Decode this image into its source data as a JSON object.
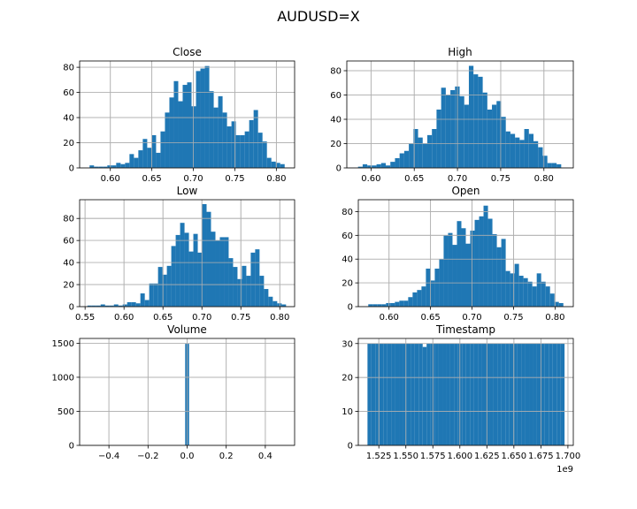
{
  "chart_data": {
    "title": "AUDUSD=X",
    "type": "histogram-grid",
    "bar_color": "#1f77b4",
    "grid": true,
    "panels": [
      {
        "id": "close",
        "title": "Close",
        "type": "bar",
        "bin_start": 0.575,
        "bin_end": 0.81,
        "values": [
          2,
          1,
          1,
          1,
          2,
          2,
          4,
          3,
          4,
          11,
          8,
          14,
          23,
          16,
          26,
          12,
          29,
          44,
          56,
          69,
          53,
          66,
          68,
          49,
          77,
          79,
          81,
          61,
          48,
          57,
          44,
          33,
          37,
          26,
          26,
          29,
          38,
          46,
          28,
          21,
          8,
          5,
          4,
          3
        ],
        "xlim": [
          0.563,
          0.822
        ],
        "ylim": [
          0,
          85
        ],
        "xticks": [
          0.6,
          0.65,
          0.7,
          0.75,
          0.8
        ],
        "xtick_labels": [
          "0.60",
          "0.65",
          "0.70",
          "0.75",
          "0.80"
        ],
        "yticks": [
          0,
          20,
          40,
          60,
          80
        ],
        "ytick_labels": [
          "0",
          "20",
          "40",
          "60",
          "80"
        ]
      },
      {
        "id": "high",
        "title": "High",
        "type": "bar",
        "bin_start": 0.585,
        "bin_end": 0.82,
        "values": [
          1,
          3,
          2,
          2,
          3,
          4,
          2,
          5,
          8,
          12,
          14,
          20,
          32,
          25,
          20,
          27,
          32,
          48,
          66,
          60,
          64,
          67,
          59,
          52,
          84,
          77,
          75,
          62,
          48,
          52,
          55,
          42,
          30,
          28,
          25,
          23,
          32,
          28,
          22,
          17,
          10,
          4,
          4,
          3
        ],
        "xlim": [
          0.572,
          0.834
        ],
        "ylim": [
          0,
          88
        ],
        "xticks": [
          0.6,
          0.65,
          0.7,
          0.75,
          0.8
        ],
        "xtick_labels": [
          "0.60",
          "0.65",
          "0.70",
          "0.75",
          "0.80"
        ],
        "yticks": [
          0,
          20,
          40,
          60,
          80
        ],
        "ytick_labels": [
          "0",
          "20",
          "40",
          "60",
          "80"
        ]
      },
      {
        "id": "low",
        "title": "Low",
        "type": "bar",
        "bin_start": 0.553,
        "bin_end": 0.808,
        "values": [
          1,
          1,
          1,
          2,
          1,
          1,
          2,
          1,
          2,
          4,
          4,
          3,
          12,
          6,
          21,
          21,
          36,
          29,
          37,
          55,
          65,
          76,
          67,
          50,
          66,
          49,
          93,
          86,
          68,
          60,
          63,
          63,
          44,
          36,
          25,
          37,
          28,
          49,
          52,
          28,
          16,
          9,
          5,
          3,
          2
        ],
        "xlim": [
          0.543,
          0.819
        ],
        "ylim": [
          0,
          97
        ],
        "xticks": [
          0.55,
          0.6,
          0.65,
          0.7,
          0.75,
          0.8
        ],
        "xtick_labels": [
          "0.55",
          "0.60",
          "0.65",
          "0.70",
          "0.75",
          "0.80"
        ],
        "yticks": [
          0,
          20,
          40,
          60,
          80
        ],
        "ytick_labels": [
          "0",
          "20",
          "40",
          "60",
          "80"
        ]
      },
      {
        "id": "open",
        "title": "Open",
        "type": "bar",
        "bin_start": 0.575,
        "bin_end": 0.81,
        "values": [
          2,
          2,
          2,
          2,
          3,
          3,
          4,
          5,
          5,
          8,
          12,
          14,
          17,
          32,
          22,
          32,
          40,
          60,
          62,
          52,
          72,
          66,
          53,
          64,
          73,
          76,
          85,
          74,
          61,
          50,
          57,
          30,
          28,
          36,
          26,
          24,
          21,
          17,
          28,
          21,
          17,
          11,
          4,
          3
        ],
        "xlim": [
          0.563,
          0.822
        ],
        "ylim": [
          0,
          90
        ],
        "xticks": [
          0.6,
          0.65,
          0.7,
          0.75,
          0.8
        ],
        "xtick_labels": [
          "0.60",
          "0.65",
          "0.70",
          "0.75",
          "0.80"
        ],
        "yticks": [
          0,
          20,
          40,
          60,
          80
        ],
        "ytick_labels": [
          "0",
          "20",
          "40",
          "60",
          "80"
        ]
      },
      {
        "id": "volume",
        "title": "Volume",
        "type": "bar",
        "bin_start": -0.01,
        "bin_end": 0.01,
        "values": [
          1491
        ],
        "xlim": [
          -0.55,
          0.55
        ],
        "ylim": [
          0,
          1570
        ],
        "xticks": [
          -0.4,
          -0.2,
          0.0,
          0.2,
          0.4
        ],
        "xtick_labels": [
          "−0.4",
          "−0.2",
          "0.0",
          "0.2",
          "0.4"
        ],
        "yticks": [
          0,
          500,
          1000,
          1500
        ],
        "ytick_labels": [
          "0",
          "500",
          "1000",
          "1500"
        ]
      },
      {
        "id": "timestamp",
        "title": "Timestamp",
        "type": "bar",
        "bin_start": 1.5145,
        "bin_end": 1.6969,
        "values": [
          30,
          30,
          30,
          30,
          30,
          30,
          30,
          30,
          30,
          30,
          30,
          30,
          30,
          30,
          29,
          30,
          30,
          30,
          30,
          30,
          30,
          30,
          30,
          30,
          30,
          30,
          30,
          30,
          30,
          30,
          30,
          30,
          30,
          30,
          30,
          30,
          30,
          30,
          30,
          30,
          30,
          30,
          30,
          30,
          30,
          30,
          30,
          30,
          30,
          30
        ],
        "xlim": [
          1.506,
          1.705
        ],
        "ylim": [
          0,
          31.5
        ],
        "xticks": [
          1.525,
          1.55,
          1.575,
          1.6,
          1.625,
          1.65,
          1.675,
          1.7
        ],
        "xtick_labels": [
          "1.525",
          "1.550",
          "1.575",
          "1.600",
          "1.625",
          "1.650",
          "1.675",
          "1.700"
        ],
        "yticks": [
          0,
          10,
          20,
          30
        ],
        "ytick_labels": [
          "0",
          "10",
          "20",
          "30"
        ],
        "offset_label": "1e9"
      }
    ]
  }
}
